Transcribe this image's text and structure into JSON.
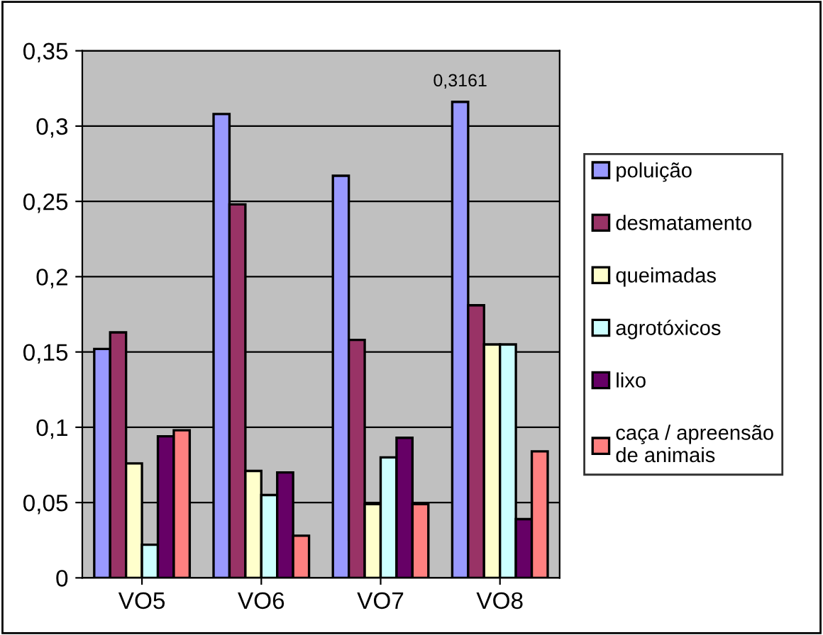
{
  "chart_data": {
    "type": "bar",
    "categories": [
      "VO5",
      "VO6",
      "VO7",
      "VO8"
    ],
    "series": [
      {
        "name": "poluição",
        "color": "#9999ff",
        "values": [
          0.152,
          0.308,
          0.267,
          0.3161
        ],
        "value_labels": [
          null,
          null,
          null,
          "0,3161"
        ]
      },
      {
        "name": "desmatamento",
        "color": "#993366",
        "values": [
          0.163,
          0.248,
          0.158,
          0.181
        ]
      },
      {
        "name": "queimadas",
        "color": "#ffffcc",
        "values": [
          0.076,
          0.071,
          0.049,
          0.155
        ]
      },
      {
        "name": "agrotóxicos",
        "color": "#ccffff",
        "values": [
          0.022,
          0.055,
          0.08,
          0.155
        ]
      },
      {
        "name": "lixo",
        "color": "#660066",
        "values": [
          0.094,
          0.07,
          0.093,
          0.039
        ]
      },
      {
        "name": "caça / apreensão\nde animais",
        "color": "#ff8080",
        "values": [
          0.098,
          0.028,
          0.049,
          0.084
        ]
      }
    ],
    "ylim": [
      0,
      0.35
    ],
    "yticks": [
      {
        "value": 0,
        "label": "0"
      },
      {
        "value": 0.05,
        "label": "0,05"
      },
      {
        "value": 0.1,
        "label": "0,1"
      },
      {
        "value": 0.15,
        "label": "0,15"
      },
      {
        "value": 0.2,
        "label": "0,2"
      },
      {
        "value": 0.25,
        "label": "0,25"
      },
      {
        "value": 0.3,
        "label": "0,3"
      },
      {
        "value": 0.35,
        "label": "0,35"
      }
    ],
    "grid": "y",
    "legend": "right"
  }
}
